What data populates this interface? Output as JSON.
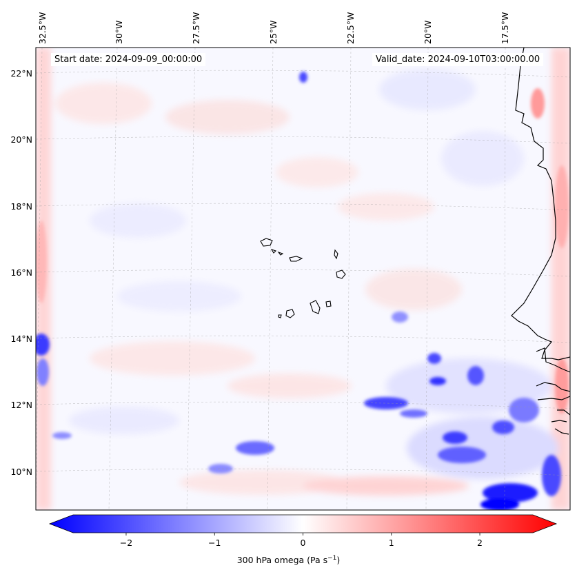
{
  "map": {
    "start_date_label": "Start date: 2024-09-09_00:00:00",
    "valid_date_label": "Valid_date: 2024-09-10T03:00:00.00",
    "lon_labels": [
      "32.5°W",
      "30°W",
      "27.5°W",
      "25°W",
      "22.5°W",
      "20°W",
      "17.5°W"
    ],
    "lat_labels": [
      "22°N",
      "20°N",
      "18°N",
      "16°N",
      "14°N",
      "12°N",
      "10°N"
    ],
    "features": [
      "Cape Verde islands",
      "West African coastline"
    ]
  },
  "colorbar": {
    "ticks": [
      "−2",
      "−1",
      "0",
      "1",
      "2"
    ],
    "tick_values": [
      -2,
      -1,
      0,
      1,
      2
    ],
    "min": -2.6,
    "max": 2.6,
    "label_text": "300 hPa omega (Pa s",
    "label_unit_exp": "−1",
    "label_suffix": ")",
    "colors": {
      "negative": "#0000ff",
      "zero": "#ffffff",
      "positive": "#ff0000"
    }
  }
}
